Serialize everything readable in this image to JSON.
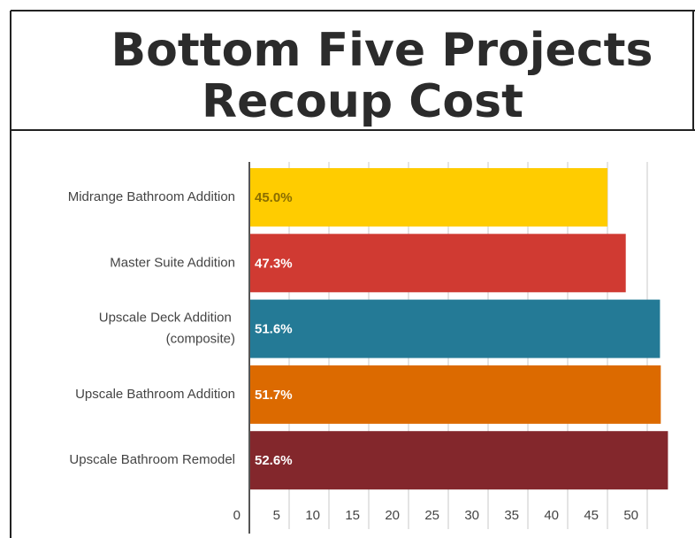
{
  "chart_data": {
    "type": "hbar",
    "title": [
      "Bottom Five Projects",
      "Recoup Cost"
    ],
    "categories": [
      "Midrange Bathroom Addition",
      "Master Suite Addition",
      "Upscale Deck Addition (composite)",
      "Upscale Bathroom Addition",
      "Upscale Bathroom Remodel"
    ],
    "values": [
      45.0,
      47.3,
      51.6,
      51.7,
      52.6
    ],
    "value_labels": [
      "45.0%",
      "47.3%",
      "51.6%",
      "51.7%",
      "52.6%"
    ],
    "colors": [
      "#ffcc00",
      "#d03a32",
      "#247a96",
      "#dc6a00",
      "#83272c"
    ],
    "xlim": [
      0,
      53
    ],
    "xticks": [
      0,
      5,
      10,
      15,
      20,
      25,
      30,
      35,
      40,
      45,
      50
    ],
    "grid": true
  }
}
